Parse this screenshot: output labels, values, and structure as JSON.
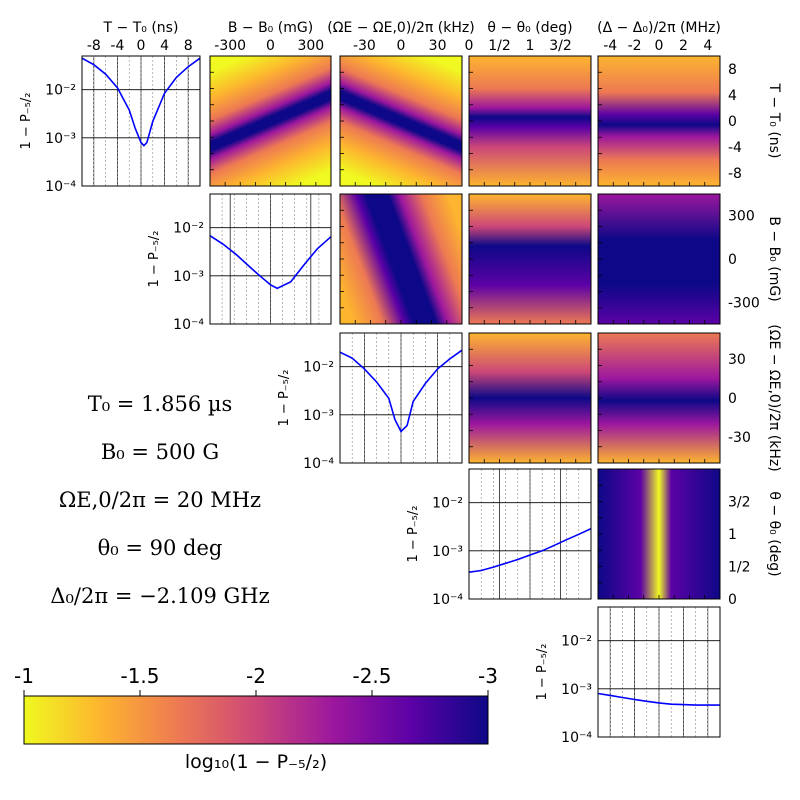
{
  "params": [
    "T₀ = 1.856 µs",
    "B₀ = 500 G",
    "ΩE,0/2π = 20 MHz",
    "θ₀ = 90 deg",
    "Δ₀/2π = −2.109 GHz"
  ],
  "colorbar": {
    "label": "log₁₀(1 − P₋₅/₂)",
    "ticks": [
      "-1",
      "-1.5",
      "-2",
      "-2.5",
      "-3"
    ],
    "colors": [
      "#f0f921",
      "#fdb42f",
      "#ed7953",
      "#cc4778",
      "#9c179e",
      "#5c01a6",
      "#0d0887"
    ]
  },
  "chart_data": {
    "type": "heatmap",
    "layout": "corner-plot",
    "parameters": [
      {
        "key": "T",
        "top_label": "T − T₀ (ns)",
        "right_label": "T − T₀ (ns)",
        "range": [
          -10,
          10
        ],
        "ticks": [
          "-8",
          "-4",
          "0",
          "4",
          "8"
        ],
        "tick_values": [
          -8,
          -4,
          0,
          4,
          8
        ]
      },
      {
        "key": "B",
        "top_label": "B − B₀ (mG)",
        "right_label": "B − B₀ (mG)",
        "range": [
          -450,
          450
        ],
        "ticks": [
          "-300",
          "0",
          "300"
        ],
        "tick_values": [
          -300,
          0,
          300
        ]
      },
      {
        "key": "Omega",
        "top_label": "(ΩE − ΩE,0)/2π (kHz)",
        "right_label": "(ΩE − ΩE,0)/2π (kHz)",
        "range": [
          -50,
          50
        ],
        "ticks": [
          "-30",
          "0",
          "30"
        ],
        "tick_values": [
          -30,
          0,
          30
        ]
      },
      {
        "key": "theta",
        "top_label": "θ − θ₀ (deg)",
        "right_label": "θ − θ₀ (deg)",
        "range": [
          0,
          2
        ],
        "ticks": [
          "0",
          "1/2",
          "1",
          "3/2"
        ],
        "tick_values": [
          0,
          0.5,
          1,
          1.5
        ]
      },
      {
        "key": "Delta",
        "top_label": "(Δ − Δ₀)/2π (MHz)",
        "right_label": "",
        "range": [
          -5,
          5
        ],
        "ticks": [
          "-4",
          "-2",
          "0",
          "2",
          "4"
        ],
        "tick_values": [
          -4,
          -2,
          0,
          2,
          4
        ]
      }
    ],
    "diagonal": {
      "ylabel": "1 − P₋₅/₂",
      "yscale": "log",
      "ylim": [
        0.0001,
        0.05
      ],
      "yticks": [
        "10⁻⁴",
        "10⁻³",
        "10⁻²"
      ],
      "series": [
        {
          "x": [
            -10,
            -8,
            -6,
            -4,
            -2,
            -1,
            0,
            0.5,
            1,
            2,
            4,
            6,
            8,
            10
          ],
          "y": [
            0.045,
            0.033,
            0.021,
            0.011,
            0.0038,
            0.0016,
            0.0008,
            0.00069,
            0.0008,
            0.0022,
            0.0085,
            0.018,
            0.03,
            0.045
          ]
        },
        {
          "x": [
            -450,
            -350,
            -250,
            -150,
            -50,
            0,
            50,
            150,
            250,
            350,
            450
          ],
          "y": [
            0.0068,
            0.0045,
            0.0027,
            0.0015,
            0.00085,
            0.00065,
            0.00055,
            0.00075,
            0.0017,
            0.0037,
            0.0065
          ]
        },
        {
          "x": [
            -50,
            -40,
            -30,
            -20,
            -10,
            -5,
            0,
            5,
            10,
            20,
            30,
            40,
            50
          ],
          "y": [
            0.02,
            0.015,
            0.009,
            0.0048,
            0.0022,
            0.0008,
            0.00045,
            0.0006,
            0.0019,
            0.0045,
            0.009,
            0.0145,
            0.022
          ]
        },
        {
          "x": [
            0,
            0.2,
            0.4,
            0.6,
            0.8,
            1,
            1.2,
            1.4,
            1.6,
            1.8,
            2
          ],
          "y": [
            0.00036,
            0.00039,
            0.00046,
            0.00055,
            0.00066,
            0.00082,
            0.001,
            0.0013,
            0.0017,
            0.0022,
            0.0029
          ]
        },
        {
          "x": [
            -5,
            -4,
            -3,
            -2,
            -1,
            0,
            1,
            2,
            3,
            4,
            5
          ],
          "y": [
            0.0008,
            0.00073,
            0.00066,
            0.0006,
            0.00055,
            0.00051,
            0.00048,
            0.00047,
            0.00046,
            0.00046,
            0.00046
          ]
        }
      ]
    },
    "colormap": "plasma",
    "color_range": [
      -1,
      -3
    ]
  }
}
